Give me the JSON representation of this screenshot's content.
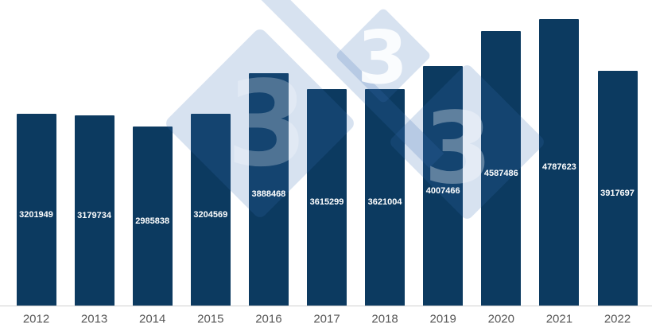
{
  "chart_data": {
    "type": "bar",
    "title": "",
    "xlabel": "",
    "ylabel": "",
    "categories": [
      "2012",
      "2013",
      "2014",
      "2015",
      "2016",
      "2017",
      "2018",
      "2019",
      "2020",
      "2021",
      "2022"
    ],
    "values": [
      3201949,
      3179734,
      2985838,
      3204569,
      3888468,
      3615299,
      3621004,
      4007466,
      4587486,
      4787623,
      3917697
    ],
    "data_labels": [
      "3201949",
      "3179734",
      "2985838",
      "3204569",
      "3888468",
      "3615299",
      "3621004",
      "4007466",
      "4587486",
      "4787623",
      "3917697"
    ],
    "data_label_position": "inside-center",
    "ylim": [
      0,
      5000000
    ],
    "grid": false,
    "legend": "none",
    "y_axis_visible": false,
    "colors": {
      "bar": "#0c3a60",
      "data_label": "#ffffff",
      "axis_label": "#595959",
      "axis_line": "#d0d0d0",
      "background": "#ffffff",
      "watermark_blue": "#376eb4"
    }
  },
  "watermark": {
    "name": "333-logo",
    "glyph": "3"
  }
}
